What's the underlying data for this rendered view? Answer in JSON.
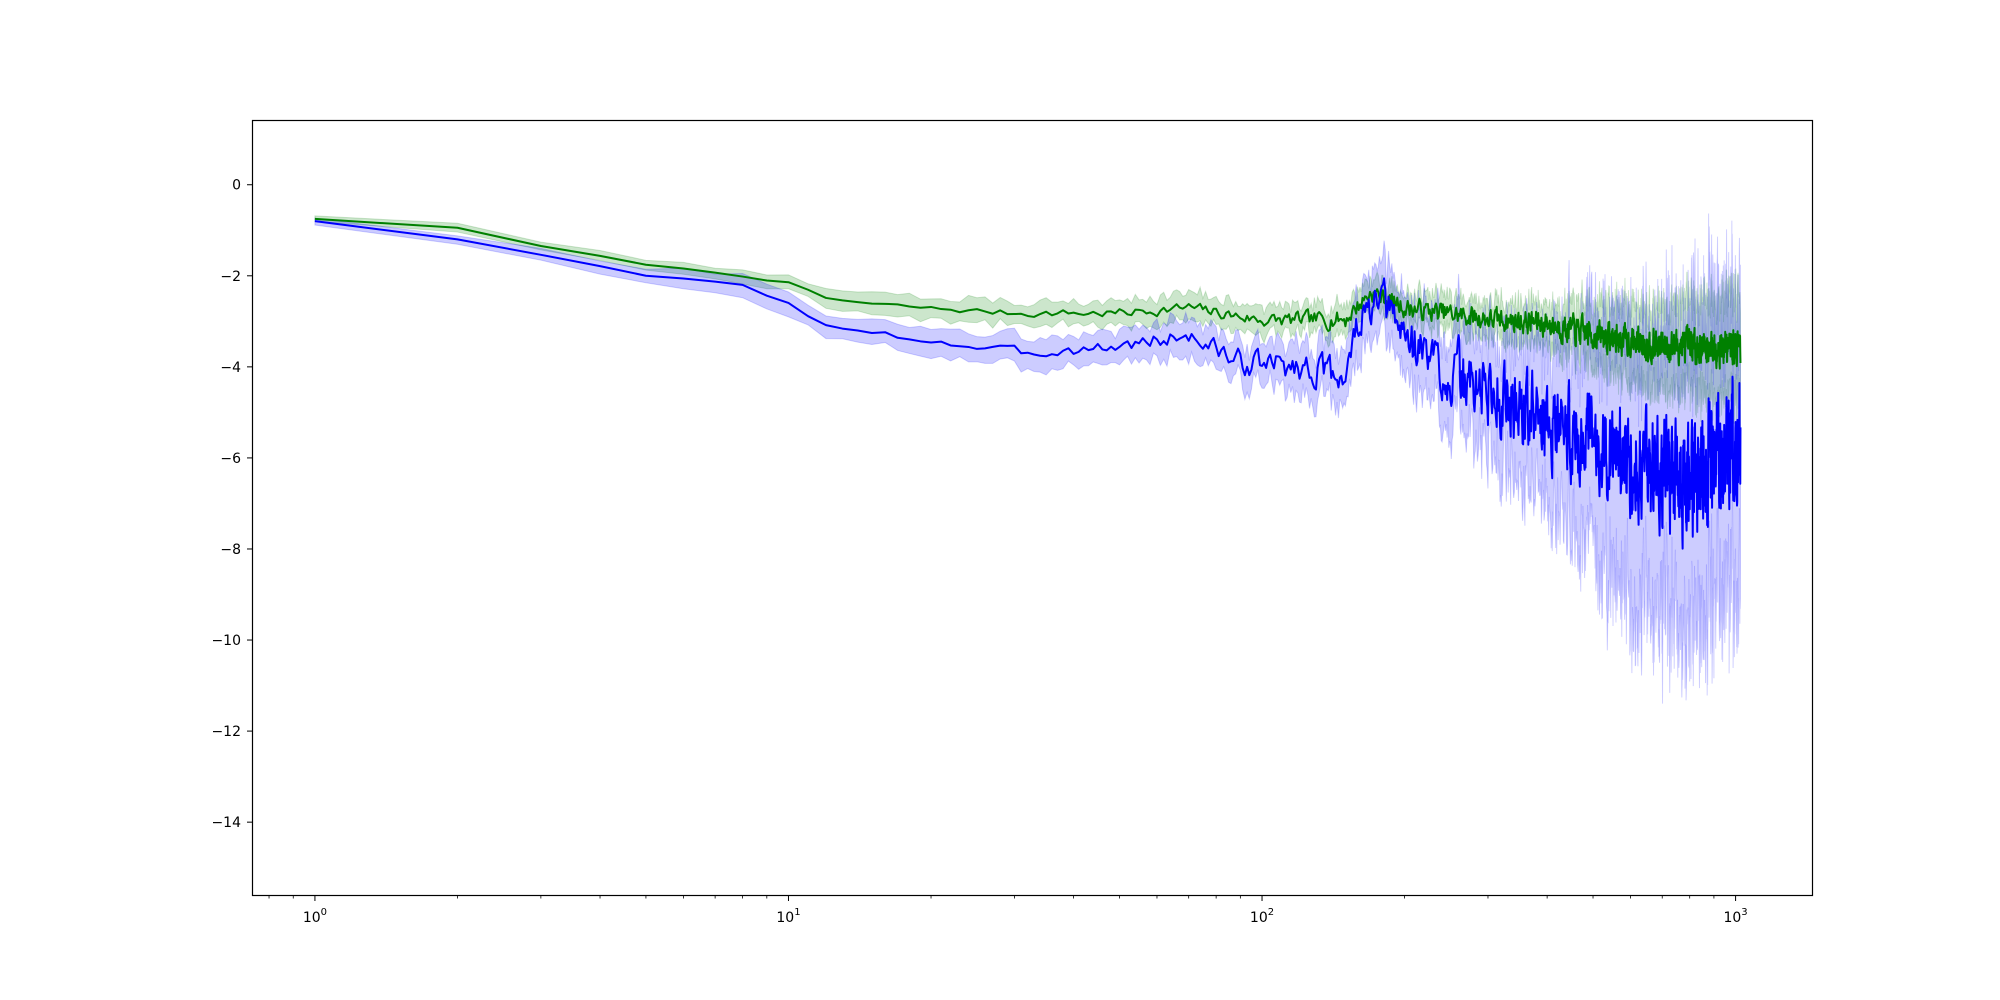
{
  "chart_data": {
    "type": "line",
    "title": "",
    "xlabel": "",
    "ylabel": "",
    "xscale": "log",
    "xlim": [
      0.74,
      1450
    ],
    "ylim": [
      -15.6,
      1.4
    ],
    "grid": false,
    "legend": "none",
    "x_ticks": [
      {
        "value": 1,
        "base": "10",
        "exp": "0"
      },
      {
        "value": 10,
        "base": "10",
        "exp": "1"
      },
      {
        "value": 100,
        "base": "10",
        "exp": "2"
      },
      {
        "value": 1000,
        "base": "10",
        "exp": "3"
      }
    ],
    "y_ticks": [
      {
        "value": 0,
        "label": "0"
      },
      {
        "value": -2,
        "label": "−2"
      },
      {
        "value": -4,
        "label": "−4"
      },
      {
        "value": -6,
        "label": "−6"
      },
      {
        "value": -8,
        "label": "−8"
      },
      {
        "value": -10,
        "label": "−10"
      },
      {
        "value": -12,
        "label": "−12"
      },
      {
        "value": -14,
        "label": "−14"
      }
    ],
    "x_range": [
      1,
      1024
    ],
    "series": [
      {
        "color": "#008000",
        "band_color": "#008000",
        "band_opacity": 0.2,
        "noise_seed": 7,
        "mean": [
          [
            1,
            -0.75
          ],
          [
            2,
            -0.95
          ],
          [
            3,
            -1.35
          ],
          [
            5,
            -1.75
          ],
          [
            8,
            -2.0
          ],
          [
            10,
            -2.15
          ],
          [
            12,
            -2.5
          ],
          [
            15,
            -2.62
          ],
          [
            20,
            -2.72
          ],
          [
            30,
            -2.82
          ],
          [
            50,
            -2.82
          ],
          [
            70,
            -2.7
          ],
          [
            100,
            -2.98
          ],
          [
            150,
            -2.95
          ],
          [
            170,
            -2.35
          ],
          [
            200,
            -2.7
          ],
          [
            300,
            -2.95
          ],
          [
            400,
            -3.05
          ],
          [
            500,
            -3.3
          ],
          [
            700,
            -3.55
          ],
          [
            1024,
            -3.55
          ]
        ],
        "noise": [
          [
            1,
            0
          ],
          [
            10,
            0.02
          ],
          [
            20,
            0.05
          ],
          [
            100,
            0.12
          ],
          [
            150,
            0.18
          ],
          [
            300,
            0.2
          ],
          [
            500,
            0.28
          ],
          [
            1024,
            0.32
          ]
        ],
        "band": [
          [
            1,
            0.15
          ],
          [
            5,
            0.2
          ],
          [
            10,
            0.3
          ],
          [
            20,
            0.5
          ],
          [
            50,
            0.55
          ],
          [
            100,
            0.6
          ],
          [
            200,
            0.65
          ],
          [
            400,
            0.9
          ],
          [
            600,
            1.6
          ],
          [
            1024,
            2.3
          ]
        ]
      },
      {
        "color": "#0000ff",
        "band_color": "#0000ff",
        "band_opacity": 0.2,
        "noise_seed": 3,
        "mean": [
          [
            1,
            -0.8
          ],
          [
            2,
            -1.2
          ],
          [
            3,
            -1.55
          ],
          [
            5,
            -2.0
          ],
          [
            8,
            -2.2
          ],
          [
            10,
            -2.6
          ],
          [
            12,
            -3.1
          ],
          [
            15,
            -3.3
          ],
          [
            20,
            -3.4
          ],
          [
            30,
            -3.7
          ],
          [
            50,
            -3.55
          ],
          [
            70,
            -3.3
          ],
          [
            90,
            -3.9
          ],
          [
            120,
            -4.0
          ],
          [
            150,
            -4.2
          ],
          [
            160,
            -3.0
          ],
          [
            180,
            -2.6
          ],
          [
            200,
            -3.3
          ],
          [
            250,
            -4.2
          ],
          [
            300,
            -4.5
          ],
          [
            400,
            -5.2
          ],
          [
            500,
            -5.7
          ],
          [
            600,
            -6.0
          ],
          [
            800,
            -6.5
          ],
          [
            1024,
            -5.5
          ]
        ],
        "noise": [
          [
            1,
            0
          ],
          [
            10,
            0.03
          ],
          [
            20,
            0.1
          ],
          [
            50,
            0.12
          ],
          [
            100,
            0.25
          ],
          [
            150,
            0.3
          ],
          [
            200,
            0.45
          ],
          [
            300,
            0.7
          ],
          [
            500,
            0.8
          ],
          [
            700,
            1.0
          ],
          [
            1024,
            1.1
          ]
        ],
        "band": [
          [
            1,
            0.15
          ],
          [
            5,
            0.3
          ],
          [
            10,
            0.5
          ],
          [
            20,
            0.6
          ],
          [
            50,
            0.7
          ],
          [
            100,
            0.9
          ],
          [
            150,
            1.3
          ],
          [
            200,
            1.7
          ],
          [
            300,
            2.4
          ],
          [
            400,
            3.5
          ],
          [
            500,
            4.8
          ],
          [
            600,
            5.8
          ],
          [
            800,
            6.5
          ],
          [
            1024,
            6.0
          ]
        ]
      }
    ]
  }
}
